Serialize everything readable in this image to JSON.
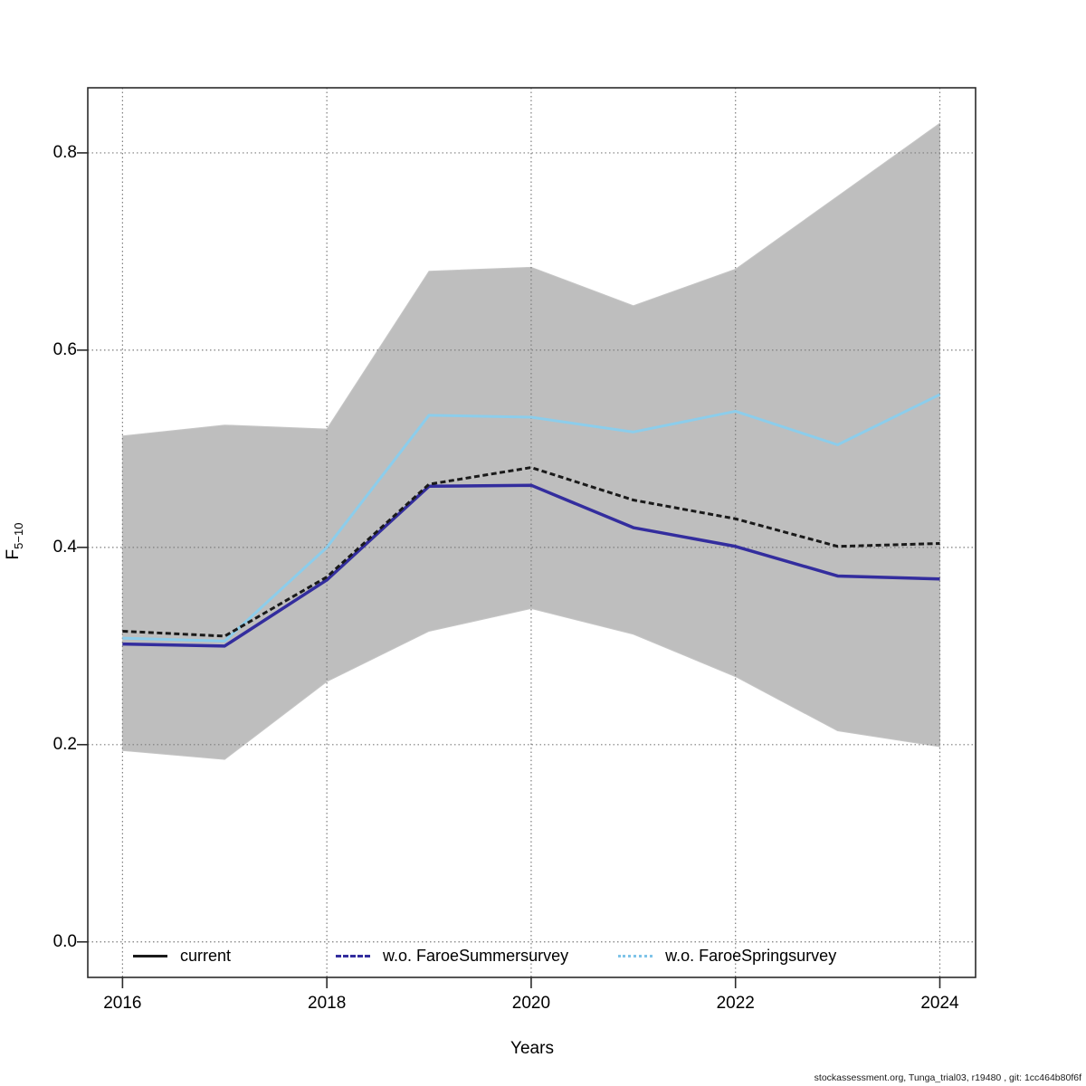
{
  "figure": {
    "xlabel": "Years",
    "ylabel_base": "F",
    "ylabel_sub": "5−10",
    "footer": "stockassessment.org, Tunga_trial03, r19480 , git: 1cc464b80f6f"
  },
  "legend": {
    "items": [
      {
        "label": "current",
        "color": "#1a1a1a",
        "sample_style": "solid"
      },
      {
        "label": "w.o. FaroeSummersurvey",
        "color": "#332d9e",
        "sample_style": "dashed"
      },
      {
        "label": "w.o. FaroeSpringsurvey",
        "color": "#7fc4e8",
        "sample_style": "dotted"
      }
    ]
  },
  "chart_data": {
    "type": "line",
    "x": [
      2016,
      2017,
      2018,
      2019,
      2020,
      2021,
      2022,
      2023,
      2024
    ],
    "series": [
      {
        "name": "current",
        "color": "#1a1a1a",
        "line_style": "dashed",
        "values": [
          0.315,
          0.31,
          0.37,
          0.464,
          0.481,
          0.448,
          0.429,
          0.401,
          0.404
        ]
      },
      {
        "name": "w.o. FaroeSummersurvey",
        "color": "#332d9e",
        "line_style": "solid",
        "values": [
          0.302,
          0.3,
          0.367,
          0.462,
          0.463,
          0.42,
          0.401,
          0.371,
          0.368
        ]
      },
      {
        "name": "w.o. FaroeSpringsurvey",
        "color": "#8ccdeb",
        "line_style": "solid",
        "values": [
          0.308,
          0.305,
          0.4,
          0.534,
          0.532,
          0.517,
          0.538,
          0.504,
          0.555
        ]
      }
    ],
    "band": {
      "series": "current",
      "color": "#bebebe",
      "upper": [
        0.513,
        0.524,
        0.52,
        0.68,
        0.684,
        0.645,
        0.682,
        0.756,
        0.83
      ],
      "lower": [
        0.194,
        0.185,
        0.264,
        0.315,
        0.338,
        0.312,
        0.269,
        0.214,
        0.198
      ]
    },
    "xlabel": "Years",
    "ylabel": "F5-10",
    "xticks": [
      2016,
      2018,
      2020,
      2022,
      2024
    ],
    "xtick_labels": [
      "2016",
      "2018",
      "2020",
      "2022",
      "2024"
    ],
    "yticks": [
      0.0,
      0.2,
      0.4,
      0.6,
      0.8
    ],
    "ytick_labels": [
      "0.0",
      "0.2",
      "0.4",
      "0.6",
      "0.8"
    ],
    "xlim": [
      2015.66,
      2024.35
    ],
    "ylim": [
      -0.036,
      0.866
    ],
    "grid": "dotted",
    "grid_color": "#7d7d7d",
    "legend_position": "bottom-inside"
  }
}
